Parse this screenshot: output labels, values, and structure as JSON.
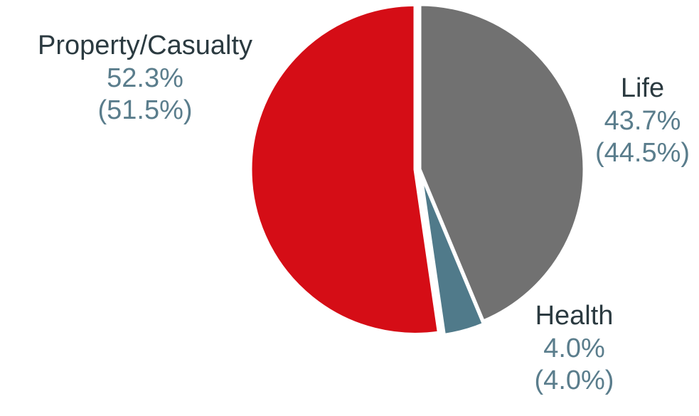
{
  "chart_data": {
    "type": "pie",
    "slices": [
      {
        "label": "Life",
        "value": 43.7,
        "value_text": "43.7%",
        "prior_text": "(44.5%)",
        "prior_value": 44.5,
        "color": "#717171"
      },
      {
        "label": "Health",
        "value": 4.0,
        "value_text": "4.0%",
        "prior_text": "(4.0%)",
        "prior_value": 4.0,
        "color": "#507a8a"
      },
      {
        "label": "Property/Casualty",
        "value": 52.3,
        "value_text": "52.3%",
        "prior_text": "(51.5%)",
        "prior_value": 51.5,
        "color": "#d50d16"
      }
    ],
    "start": "top, clockwise",
    "separator_color": "#ffffff"
  }
}
